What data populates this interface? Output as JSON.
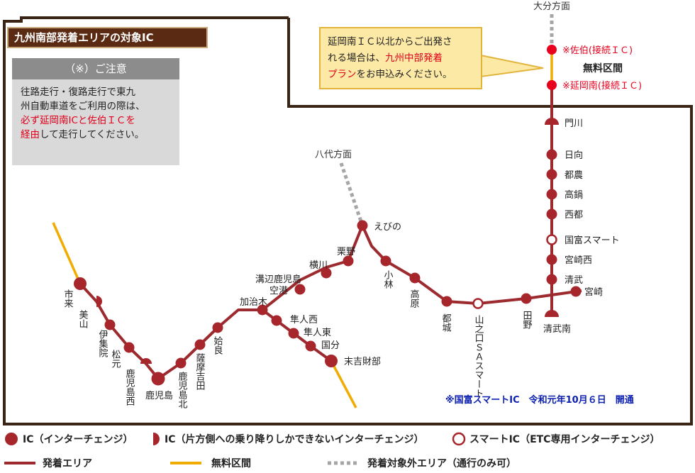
{
  "title": "九州南部発着エリアの対象IC",
  "notice": {
    "heading": "（※）ご注意",
    "line1": "往路走行・復路走行で東九",
    "line2a": "州自動車道をご利用の際は、",
    "line3_red": "必ず延岡南ICと佐伯ＩＣを",
    "line4_red": "経由",
    "line4_rest": "して走行してください。"
  },
  "callout": {
    "line1": "延岡南ＩＣ以北からご出発さ",
    "line2": "れる場合は、",
    "line2_red": "九州中部発着",
    "line3_red": "プラン",
    "line3_rest": "をお申込みください。"
  },
  "directions": {
    "oita": "大分方面",
    "yatsushiro": "八代方面"
  },
  "free_section_label": "無料区間",
  "connect_ics": {
    "saiki": "※佐伯(接続ＩＣ)",
    "nobeokaminami": "※延岡南(接続ＩＣ)"
  },
  "stations": {
    "kadokawa": "門川",
    "hyuga": "日向",
    "tsuno": "都農",
    "takanabe": "高鍋",
    "saito": "西都",
    "kunitomi_smart": "国富スマート",
    "miyazakinishi": "宮崎西",
    "kiyotake": "清武",
    "miyazaki": "宮崎",
    "kiyotakeminami": "清武南",
    "tano": "田野",
    "yamanokuchi": "山之口ＳＡスマート",
    "miyakonojo": "都城",
    "takaharu": "高原",
    "kobayashi": "小林",
    "ebino": "えびの",
    "kurino": "栗野",
    "yokogawa": "横川",
    "mizobe": "溝辺鹿児島空港",
    "kajiki": "加治木",
    "hayatonishi": "隼人西",
    "hayatohigashi": "隼人東",
    "kokubu": "国分",
    "suekichi": "末吉財部",
    "aira": "姶良",
    "satsumayoshida": "薩摩吉田",
    "kagoshimakita": "鹿児島北",
    "kagoshima": "鹿児島",
    "kagoshimanishi": "鹿児島西",
    "matsumoto": "松元",
    "ijuin": "伊集院",
    "miyama": "美山",
    "ichiki": "市来"
  },
  "opening_note": "※国富スマートIC　令和元年10月６日　開通",
  "legend": {
    "ic": "IC（インターチェンジ）",
    "half_ic": "IC（片方側への乗り降りしかできないインターチェンジ）",
    "smart_ic": "スマートIC（ETC専用インターチェンジ）",
    "area": "発着エリア",
    "free": "無料区間",
    "outside": "発着対象外エリア（通行のみ可）"
  },
  "colors": {
    "route": "#9c2a2e",
    "ic_fill": "#a7262c",
    "free": "#f0ac00",
    "outside": "#a6a6a6",
    "border": "#3a2415",
    "connect_ic": "#e8001c",
    "title_bg": "#5a2a12"
  }
}
